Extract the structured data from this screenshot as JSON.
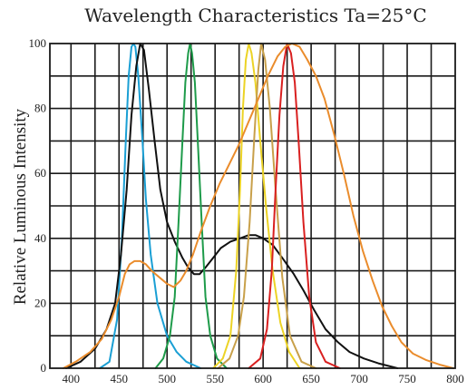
{
  "chart_data": {
    "type": "line",
    "title": "Wavelength Characteristics Ta=25°C",
    "xlabel": "",
    "ylabel": "Relative Luminous Intensity",
    "xlim": [
      378,
      800
    ],
    "ylim": [
      0,
      100
    ],
    "x_ticks": [
      400,
      450,
      500,
      550,
      600,
      650,
      700,
      750,
      800
    ],
    "y_ticks": [
      0,
      20,
      40,
      60,
      80,
      100
    ],
    "grid": true,
    "series": [
      {
        "color": "#1a9fd4",
        "points": [
          [
            430,
            0
          ],
          [
            440,
            2
          ],
          [
            448,
            15
          ],
          [
            453,
            40
          ],
          [
            457,
            70
          ],
          [
            460,
            90
          ],
          [
            463,
            99
          ],
          [
            465,
            100
          ],
          [
            467,
            99
          ],
          [
            470,
            90
          ],
          [
            474,
            72
          ],
          [
            478,
            52
          ],
          [
            483,
            35
          ],
          [
            490,
            20
          ],
          [
            500,
            10
          ],
          [
            510,
            5
          ],
          [
            520,
            2
          ],
          [
            535,
            0
          ]
        ]
      },
      {
        "color": "#111111",
        "points": [
          [
            395,
            0
          ],
          [
            410,
            2
          ],
          [
            425,
            6
          ],
          [
            437,
            12
          ],
          [
            446,
            20
          ],
          [
            452,
            35
          ],
          [
            458,
            55
          ],
          [
            463,
            78
          ],
          [
            468,
            93
          ],
          [
            472,
            100
          ],
          [
            476,
            98
          ],
          [
            481,
            86
          ],
          [
            487,
            70
          ],
          [
            493,
            55
          ],
          [
            500,
            45
          ],
          [
            508,
            39
          ],
          [
            516,
            34
          ],
          [
            522,
            31
          ],
          [
            528,
            29
          ],
          [
            534,
            29
          ],
          [
            540,
            31
          ],
          [
            548,
            34
          ],
          [
            556,
            37
          ],
          [
            566,
            39
          ],
          [
            576,
            40
          ],
          [
            585,
            41
          ],
          [
            592,
            41
          ],
          [
            600,
            40
          ],
          [
            610,
            38
          ],
          [
            620,
            34
          ],
          [
            632,
            29
          ],
          [
            642,
            24
          ],
          [
            653,
            18
          ],
          [
            665,
            12
          ],
          [
            678,
            8
          ],
          [
            690,
            5
          ],
          [
            705,
            3
          ],
          [
            720,
            1.5
          ],
          [
            740,
            0
          ]
        ]
      },
      {
        "color": "#1e9b4a",
        "points": [
          [
            488,
            0
          ],
          [
            496,
            3
          ],
          [
            503,
            10
          ],
          [
            508,
            22
          ],
          [
            512,
            45
          ],
          [
            516,
            70
          ],
          [
            519,
            88
          ],
          [
            522,
            97
          ],
          [
            524,
            100
          ],
          [
            526,
            97
          ],
          [
            529,
            88
          ],
          [
            532,
            70
          ],
          [
            536,
            45
          ],
          [
            540,
            22
          ],
          [
            545,
            10
          ],
          [
            552,
            3
          ],
          [
            562,
            0
          ]
        ]
      },
      {
        "color": "#ecd325",
        "points": [
          [
            548,
            0
          ],
          [
            558,
            3
          ],
          [
            566,
            10
          ],
          [
            572,
            30
          ],
          [
            576,
            55
          ],
          [
            579,
            80
          ],
          [
            582,
            95
          ],
          [
            585,
            100
          ],
          [
            588,
            97
          ],
          [
            592,
            88
          ],
          [
            597,
            70
          ],
          [
            603,
            50
          ],
          [
            610,
            30
          ],
          [
            618,
            14
          ],
          [
            627,
            5
          ],
          [
            638,
            0
          ]
        ]
      },
      {
        "color": "#c8a04a",
        "points": [
          [
            553,
            0
          ],
          [
            565,
            3
          ],
          [
            574,
            10
          ],
          [
            580,
            22
          ],
          [
            586,
            45
          ],
          [
            591,
            72
          ],
          [
            595,
            92
          ],
          [
            598,
            100
          ],
          [
            602,
            95
          ],
          [
            607,
            80
          ],
          [
            613,
            55
          ],
          [
            620,
            28
          ],
          [
            628,
            10
          ],
          [
            640,
            2
          ],
          [
            655,
            0
          ]
        ]
      },
      {
        "color": "#d92020",
        "points": [
          [
            585,
            0
          ],
          [
            597,
            3
          ],
          [
            604,
            12
          ],
          [
            609,
            30
          ],
          [
            613,
            55
          ],
          [
            617,
            78
          ],
          [
            621,
            93
          ],
          [
            625,
            100
          ],
          [
            629,
            97
          ],
          [
            633,
            88
          ],
          [
            637,
            70
          ],
          [
            642,
            45
          ],
          [
            648,
            22
          ],
          [
            655,
            8
          ],
          [
            665,
            2
          ],
          [
            680,
            0
          ]
        ]
      },
      {
        "color": "#ea8c2c",
        "points": [
          [
            392,
            0
          ],
          [
            405,
            2
          ],
          [
            420,
            5
          ],
          [
            432,
            9
          ],
          [
            442,
            15
          ],
          [
            450,
            22
          ],
          [
            456,
            29
          ],
          [
            461,
            32
          ],
          [
            466,
            33
          ],
          [
            472,
            33
          ],
          [
            478,
            32
          ],
          [
            484,
            30
          ],
          [
            492,
            28
          ],
          [
            500,
            26
          ],
          [
            507,
            25
          ],
          [
            514,
            27
          ],
          [
            520,
            30
          ],
          [
            527,
            35
          ],
          [
            535,
            42
          ],
          [
            545,
            50
          ],
          [
            555,
            57
          ],
          [
            565,
            63
          ],
          [
            575,
            69
          ],
          [
            585,
            76
          ],
          [
            595,
            83
          ],
          [
            605,
            90
          ],
          [
            615,
            96
          ],
          [
            623,
            99
          ],
          [
            630,
            100
          ],
          [
            638,
            99
          ],
          [
            646,
            95
          ],
          [
            655,
            90
          ],
          [
            664,
            83
          ],
          [
            674,
            72
          ],
          [
            684,
            60
          ],
          [
            694,
            47
          ],
          [
            704,
            36
          ],
          [
            714,
            27
          ],
          [
            724,
            19
          ],
          [
            734,
            13
          ],
          [
            744,
            8
          ],
          [
            756,
            4.5
          ],
          [
            770,
            2.5
          ],
          [
            785,
            1
          ],
          [
            798,
            0
          ]
        ]
      }
    ]
  }
}
